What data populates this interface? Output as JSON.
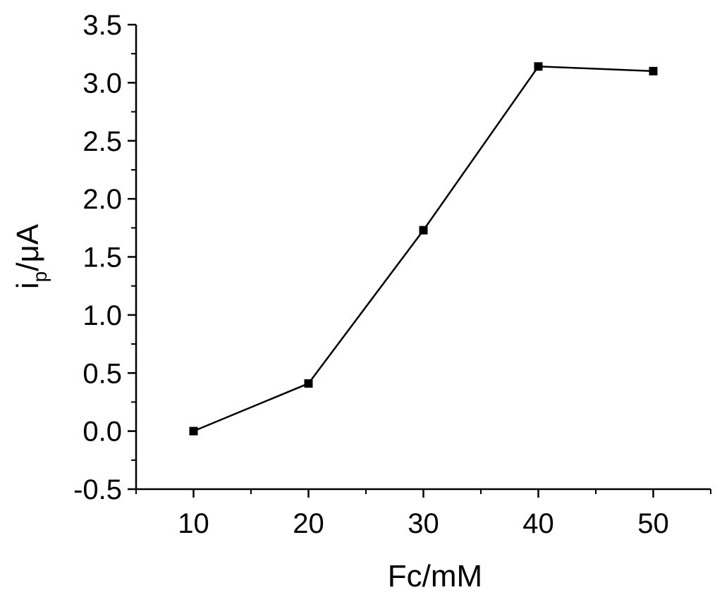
{
  "chart_data": {
    "type": "line",
    "xlabel": "Fc/mM",
    "ylabel": {
      "main": "i",
      "subscript": "p",
      "suffix": "/μA"
    },
    "x": [
      10,
      20,
      30,
      40,
      50
    ],
    "series": [
      {
        "values": [
          0.0,
          0.41,
          1.73,
          3.14,
          3.1
        ],
        "marker": "square",
        "color": "#000000"
      }
    ],
    "xlim": [
      5,
      55
    ],
    "ylim": [
      -0.5,
      3.5
    ],
    "x_ticks": [
      10,
      20,
      30,
      40,
      50
    ],
    "x_tick_labels": [
      "10",
      "20",
      "30",
      "40",
      "50"
    ],
    "y_ticks": [
      -0.5,
      0.0,
      0.5,
      1.0,
      1.5,
      2.0,
      2.5,
      3.0,
      3.5
    ],
    "y_tick_labels": [
      "-0.5",
      "0.0",
      "0.5",
      "1.0",
      "1.5",
      "2.0",
      "2.5",
      "3.0",
      "3.5"
    ],
    "grid": false,
    "legend": "none"
  }
}
